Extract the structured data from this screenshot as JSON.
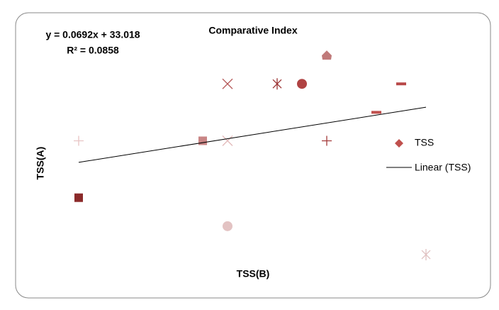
{
  "chart_data": {
    "type": "scatter",
    "title": "Comparative Index",
    "x_label": "TSS(B)",
    "y_label": "TSS(A)",
    "series": [
      {
        "name": "TSS",
        "color": "#c0504d",
        "x": [
          10,
          10,
          60,
          70,
          70,
          70,
          90,
          100,
          110,
          110,
          130,
          140,
          150
        ],
        "values": [
          37.5,
          27.5,
          37.5,
          47.5,
          37.5,
          22.5,
          47.5,
          47.5,
          52.5,
          37.5,
          42.5,
          47.5,
          17.5
        ],
        "markers": [
          "plus",
          "square",
          "square",
          "x",
          "x",
          "circle",
          "star",
          "circle",
          "house",
          "plus",
          "dash",
          "dash",
          "star"
        ],
        "point_colors": [
          "#e8c4c4",
          "#8b2a2a",
          "#c98585",
          "#b35353",
          "#e0b5b5",
          "#e3c3c3",
          "#9a3232",
          "#b04343",
          "#c07a7a",
          "#a33a3a",
          "#c0504d",
          "#b84848",
          "#e0c0c0"
        ]
      }
    ],
    "trendline": {
      "name": "Linear (TSS)",
      "slope": 0.0692,
      "intercept": 33.018,
      "color": "#000000",
      "equation": "y = 0.0692x + 33.018",
      "r2_label": "R² = 0.0858"
    },
    "xlim": [
      0,
      160
    ],
    "ylim": [
      15,
      57
    ],
    "grid": false,
    "legend": "right"
  }
}
